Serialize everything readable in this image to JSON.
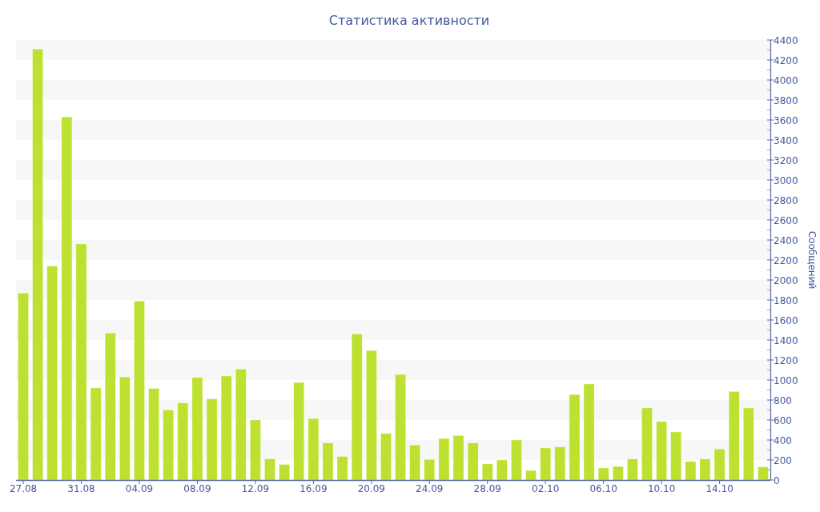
{
  "chart_data": {
    "type": "bar",
    "title": "Статистика активности",
    "ylabel": "Сообщений",
    "categories": [
      "27.08",
      null,
      null,
      null,
      "31.08",
      null,
      null,
      null,
      "04.09",
      null,
      null,
      null,
      "08.09",
      null,
      null,
      null,
      "12.09",
      null,
      null,
      null,
      "16.09",
      null,
      null,
      null,
      "20.09",
      null,
      null,
      null,
      "24.09",
      null,
      null,
      null,
      "28.09",
      null,
      null,
      null,
      "02.10",
      null,
      null,
      null,
      "06.10",
      null,
      null,
      null,
      "10.10",
      null,
      null,
      null,
      "14.10",
      null,
      null,
      null
    ],
    "values": [
      1870,
      4310,
      2140,
      3630,
      2360,
      920,
      1470,
      1030,
      1790,
      915,
      700,
      770,
      1025,
      810,
      1040,
      1110,
      600,
      210,
      155,
      975,
      615,
      370,
      235,
      1460,
      1295,
      465,
      1055,
      350,
      205,
      415,
      445,
      370,
      160,
      200,
      400,
      95,
      320,
      330,
      855,
      960,
      120,
      135,
      210,
      720,
      585,
      480,
      185,
      210,
      310,
      885,
      720,
      130
    ],
    "color": "#bde130",
    "ylim": [
      0,
      4400
    ],
    "yticks": [
      0,
      {
        "value": 100,
        "label": null
      },
      200,
      {
        "value": 300,
        "label": null
      },
      400,
      {
        "value": 500,
        "label": null
      },
      600,
      {
        "value": 700,
        "label": null
      },
      800,
      {
        "value": 900,
        "label": null
      },
      1000,
      {
        "value": 1100,
        "label": null
      },
      1200,
      {
        "value": 1300,
        "label": null
      },
      1400,
      {
        "value": 1500,
        "label": null
      },
      1600,
      {
        "value": 1700,
        "label": null
      },
      1800,
      {
        "value": 1900,
        "label": null
      },
      2000,
      {
        "value": 2100,
        "label": null
      },
      2200,
      {
        "value": 2300,
        "label": null
      },
      2400,
      {
        "value": 2500,
        "label": null
      },
      2600,
      {
        "value": 2700,
        "label": null
      },
      2800,
      {
        "value": 2900,
        "label": null
      },
      3000,
      {
        "value": 3100,
        "label": null
      },
      3200,
      {
        "value": 3300,
        "label": null
      },
      3400,
      {
        "value": 3500,
        "label": null
      },
      3600,
      {
        "value": 3700,
        "label": null
      },
      3800,
      {
        "value": 3900,
        "label": null
      },
      4000,
      {
        "value": 4100,
        "label": null
      },
      4200,
      {
        "value": 4300,
        "label": null
      },
      4400
    ],
    "bands": [
      {
        "axis": "y",
        "from": 200,
        "to": 400,
        "color": "#f7f7f7"
      },
      {
        "axis": "y",
        "from": 600,
        "to": 800,
        "color": "#f7f7f7"
      },
      {
        "axis": "y",
        "from": 1000,
        "to": 1200,
        "color": "#f7f7f7"
      },
      {
        "axis": "y",
        "from": 1400,
        "to": 1600,
        "color": "#f7f7f7"
      },
      {
        "axis": "y",
        "from": 1800,
        "to": 2000,
        "color": "#f7f7f7"
      },
      {
        "axis": "y",
        "from": 2200,
        "to": 2400,
        "color": "#f7f7f7"
      },
      {
        "axis": "y",
        "from": 2600,
        "to": 2800,
        "color": "#f7f7f7"
      },
      {
        "axis": "y",
        "from": 3000,
        "to": 3200,
        "color": "#f7f7f7"
      },
      {
        "axis": "y",
        "from": 3400,
        "to": 3600,
        "color": "#f7f7f7"
      },
      {
        "axis": "y",
        "from": 3800,
        "to": 4000,
        "color": "#f7f7f7"
      },
      {
        "axis": "y",
        "from": 4200,
        "to": 4400,
        "color": "#f7f7f7"
      }
    ]
  }
}
